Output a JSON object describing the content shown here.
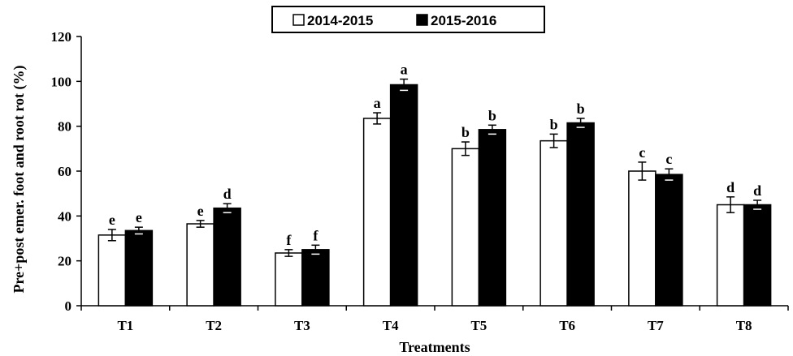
{
  "chart_data": {
    "type": "bar",
    "categories": [
      "T1",
      "T2",
      "T3",
      "T4",
      "T5",
      "T6",
      "T7",
      "T8"
    ],
    "series": [
      {
        "name": "2014-2015",
        "color": "#ffffff",
        "values": [
          31.5,
          36.5,
          23.5,
          83.5,
          70,
          73.5,
          60,
          45
        ],
        "errors": [
          2.5,
          1.5,
          1.5,
          2.5,
          3,
          3,
          4,
          3.5
        ],
        "letters": [
          "e",
          "e",
          "f",
          "a",
          "b",
          "b",
          "c",
          "d"
        ]
      },
      {
        "name": "2015-2016",
        "color": "#000000",
        "values": [
          33.5,
          43.5,
          25,
          98.5,
          78.5,
          81.5,
          58.5,
          45
        ],
        "errors": [
          1.5,
          2,
          2,
          2.5,
          2,
          2,
          2.5,
          2
        ],
        "letters": [
          "e",
          "d",
          "f",
          "a",
          "b",
          "b",
          "c",
          "d"
        ]
      }
    ],
    "xlabel": "Treatments",
    "ylabel": "Pre+post emer. foot and root rot (%)",
    "ylim": [
      0,
      120
    ],
    "yticks": [
      0,
      20,
      40,
      60,
      80,
      100,
      120
    ],
    "grid": false,
    "legend_position": "top-center"
  }
}
